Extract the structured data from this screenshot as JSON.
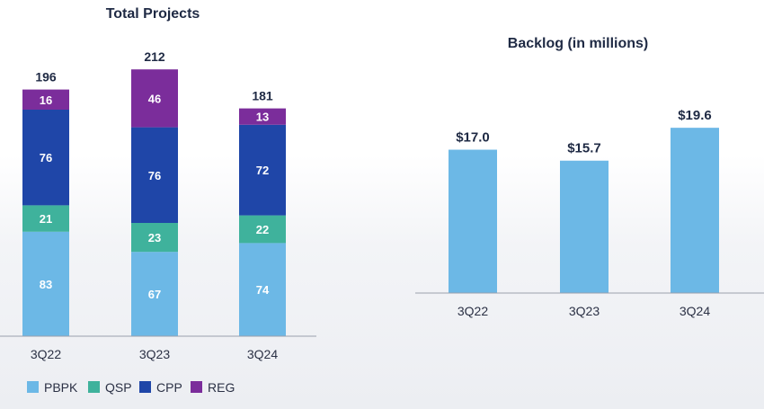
{
  "chart_data": [
    {
      "type": "bar",
      "stacked": true,
      "title": "Total Projects",
      "categories": [
        "3Q22",
        "3Q23",
        "3Q24"
      ],
      "series": [
        {
          "name": "PBPK",
          "values": [
            83,
            67,
            74
          ],
          "color": "#6cb8e6"
        },
        {
          "name": "QSP",
          "values": [
            21,
            23,
            22
          ],
          "color": "#3fb29c"
        },
        {
          "name": "CPP",
          "values": [
            76,
            76,
            72
          ],
          "color": "#1f46a8"
        },
        {
          "name": "REG",
          "values": [
            16,
            46,
            13
          ],
          "color": "#7b2d9b"
        }
      ],
      "totals": [
        196,
        212,
        181
      ],
      "legend_position": "bottom",
      "grid": false
    },
    {
      "type": "bar",
      "title": "Backlog (in millions)",
      "categories": [
        "3Q22",
        "3Q23",
        "3Q24"
      ],
      "values": [
        17.0,
        15.7,
        19.6
      ],
      "value_labels": [
        "$17.0",
        "$15.7",
        "$19.6"
      ],
      "color": "#6cb8e6",
      "grid": false
    }
  ]
}
